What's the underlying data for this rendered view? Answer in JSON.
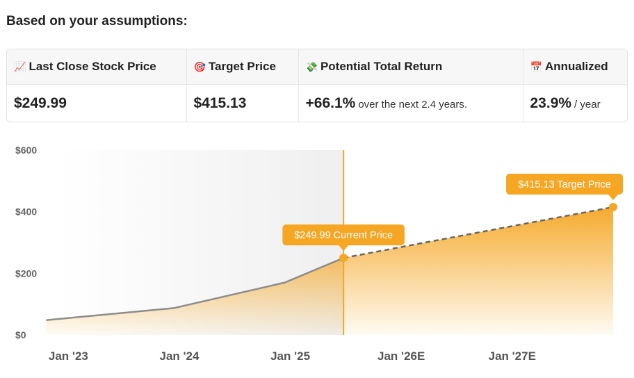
{
  "heading": "Based on your assumptions:",
  "summary": {
    "columns": [
      {
        "icon": "chart-increasing-icon",
        "glyph": "📈",
        "label": "Last Close Stock Price",
        "value": "$249.99",
        "suffix": ""
      },
      {
        "icon": "target-icon",
        "glyph": "🎯",
        "label": "Target Price",
        "value": "$415.13",
        "suffix": ""
      },
      {
        "icon": "money-wings-icon",
        "glyph": "💸",
        "label": "Potential Total Return",
        "value": "+66.1%",
        "suffix": "over the next 2.4 years."
      },
      {
        "icon": "calendar-icon",
        "glyph": "📅",
        "label": "Annualized",
        "value": "23.9%",
        "suffix": "/ year"
      }
    ]
  },
  "chart_data": {
    "type": "area",
    "ylim": [
      0,
      600
    ],
    "y_ticks": [
      "$0",
      "$200",
      "$400",
      "$600"
    ],
    "y_tick_values": [
      0,
      200,
      400,
      600
    ],
    "x_ticks": [
      "Jan '23",
      "Jan '24",
      "Jan '25",
      "Jan '26E",
      "Jan '27E"
    ],
    "xlim": [
      2022.96,
      2027.96
    ],
    "x_tick_values": [
      2023.0,
      2024.0,
      2025.0,
      2026.0,
      2027.0
    ],
    "historical": {
      "x": [
        2022.85,
        2024.0,
        2025.0,
        2025.53
      ],
      "y": [
        48,
        87,
        170,
        250
      ]
    },
    "projection": {
      "x": [
        2025.53,
        2027.96
      ],
      "y": [
        249.99,
        415.13
      ]
    },
    "annotations": [
      {
        "label": "$249.99 Current Price",
        "x": 2025.53,
        "y": 249.99
      },
      {
        "label": "$415.13 Target Price",
        "x": 2027.96,
        "y": 415.13
      }
    ],
    "colors": {
      "accent": "#f5a623",
      "line": "#8c8c8c",
      "history_bg": "#efefef",
      "dash": "#666666"
    },
    "grid": false
  }
}
